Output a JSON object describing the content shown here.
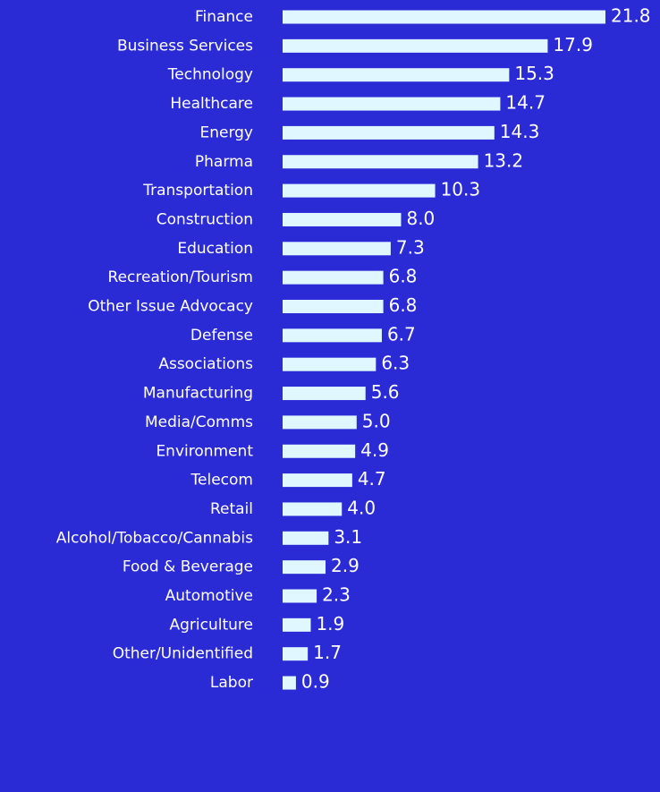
{
  "chart_data": {
    "type": "bar",
    "orientation": "horizontal",
    "color": "#e0f7ff",
    "categories": [
      "Finance",
      "Business Services",
      "Technology",
      "Healthcare",
      "Energy",
      "Pharma",
      "Transportation",
      "Construction",
      "Education",
      "Recreation/Tourism",
      "Other Issue Advocacy",
      "Defense",
      "Associations",
      "Manufacturing",
      "Media/Comms",
      "Environment",
      "Telecom",
      "Retail",
      "Alcohol/Tobacco/Cannabis",
      "Food & Beverage",
      "Automotive",
      "Agriculture",
      "Other/Unidentified",
      "Labor"
    ],
    "values": [
      21.8,
      17.9,
      15.3,
      14.7,
      14.3,
      13.2,
      10.3,
      8.0,
      7.3,
      6.8,
      6.8,
      6.7,
      6.3,
      5.6,
      5.0,
      4.9,
      4.7,
      4.0,
      3.1,
      2.9,
      2.3,
      1.9,
      1.7,
      0.9
    ],
    "value_labels": [
      "21.8",
      "17.9",
      "15.3",
      "14.7",
      "14.3",
      "13.2",
      "10.3",
      "8.0",
      "7.3",
      "6.8",
      "6.8",
      "6.7",
      "6.3",
      "5.6",
      "5.0",
      "4.9",
      "4.7",
      "4.0",
      "3.1",
      "2.9",
      "2.3",
      "1.9",
      "1.7",
      "0.9"
    ]
  }
}
